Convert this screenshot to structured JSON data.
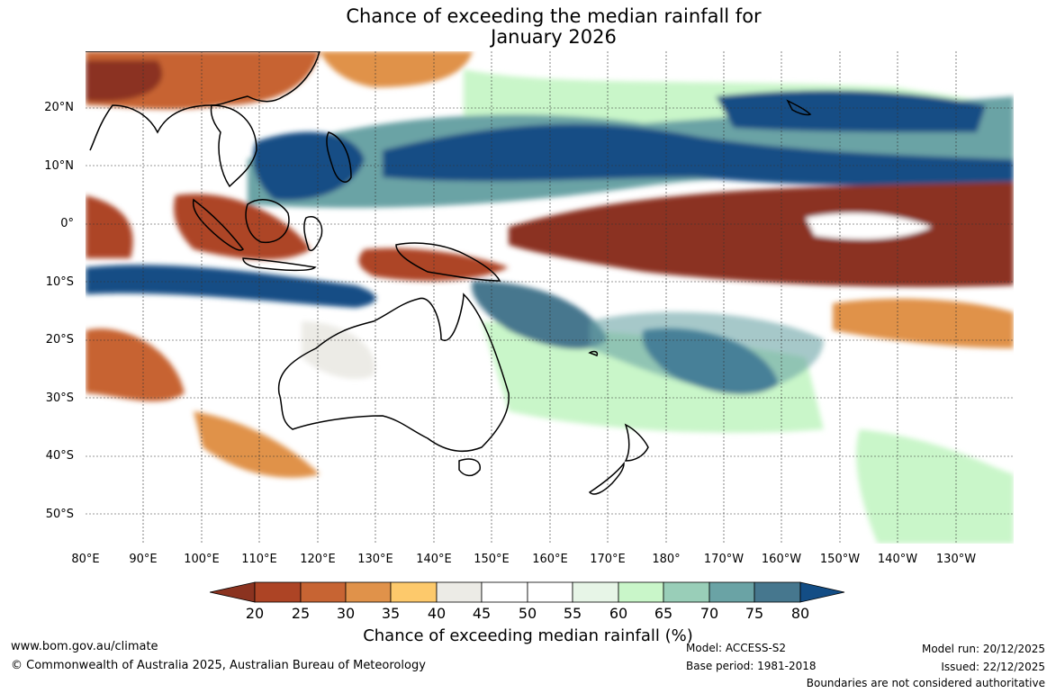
{
  "title": {
    "line1": "Chance of exceeding the median rainfall for",
    "line2": "January 2026"
  },
  "map": {
    "lat_labels": [
      "20°N",
      "10°N",
      "0°",
      "10°S",
      "20°S",
      "30°S",
      "40°S",
      "50°S"
    ],
    "lon_labels": [
      "80°E",
      "90°E",
      "100°E",
      "110°E",
      "120°E",
      "130°E",
      "140°E",
      "150°E",
      "160°E",
      "170°E",
      "180°",
      "170°W",
      "160°W",
      "150°W",
      "140°W",
      "130°W"
    ]
  },
  "colorbar": {
    "ticks": [
      "20",
      "25",
      "30",
      "35",
      "40",
      "45",
      "50",
      "55",
      "60",
      "65",
      "70",
      "75",
      "80"
    ],
    "colors": {
      "under": "#8b3320",
      "c20": "#ad4425",
      "c25": "#c76433",
      "c30": "#e0924a",
      "c35": "#fdc96b",
      "c40": "#ecebe6",
      "c45": "#ffffff",
      "c50": "#ffffff",
      "c55": "#e7f5e7",
      "c60": "#c9f6c9",
      "c65": "#99ceb8",
      "c70": "#6aa3a5",
      "c75": "#46778e",
      "over": "#134d85"
    },
    "label": "Chance of exceeding median rainfall (%)"
  },
  "footer": {
    "website": "www.bom.gov.au/climate",
    "copyright": "© Commonwealth of Australia 2025, Australian Bureau of Meteorology",
    "model": "Model: ACCESS-S2",
    "base_period": "Base period: 1981-2018",
    "model_run": "Model run: 20/12/2025",
    "issued": "Issued: 22/12/2025",
    "disclaimer": "Boundaries are not considered authoritative"
  }
}
